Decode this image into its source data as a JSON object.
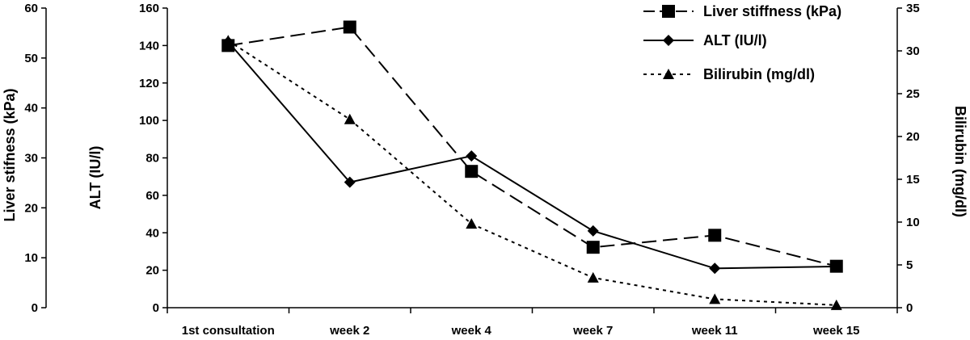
{
  "chart_data": {
    "type": "line",
    "categories": [
      "1st consultation",
      "week 2",
      "week 4",
      "week 7",
      "week 11",
      "week 15"
    ],
    "axes": {
      "left": {
        "label": "Liver stifness (kPa)",
        "ylim": [
          0,
          60
        ],
        "ticks": [
          0,
          10,
          20,
          30,
          40,
          50,
          60
        ]
      },
      "alt": {
        "label": "ALT (IU/l)",
        "ylim": [
          0,
          160
        ],
        "ticks": [
          0,
          20,
          40,
          60,
          80,
          100,
          120,
          140,
          160
        ]
      },
      "right": {
        "label": "Bilirubin (mg/dl)",
        "ylim": [
          0,
          35
        ],
        "ticks": [
          0,
          5,
          10,
          15,
          20,
          25,
          30,
          35
        ]
      }
    },
    "series": [
      {
        "name": "Liver stiffness (kPa)",
        "axis": "left",
        "marker": "square",
        "dash": "long-dash",
        "values": [
          52.5,
          56.2,
          27.3,
          12.1,
          14.5,
          8.3
        ]
      },
      {
        "name": "ALT (IU/l)",
        "axis": "alt",
        "marker": "diamond",
        "dash": "solid",
        "values": [
          142,
          67,
          81,
          41,
          21,
          22
        ]
      },
      {
        "name": "Bilirubin (mg/dl)",
        "axis": "right",
        "marker": "triangle",
        "dash": "dotted",
        "values": [
          31.2,
          22,
          9.8,
          3.5,
          1,
          0.3
        ]
      }
    ],
    "grid": false,
    "legend": {
      "placement": "top-right"
    },
    "color": "#000000"
  }
}
